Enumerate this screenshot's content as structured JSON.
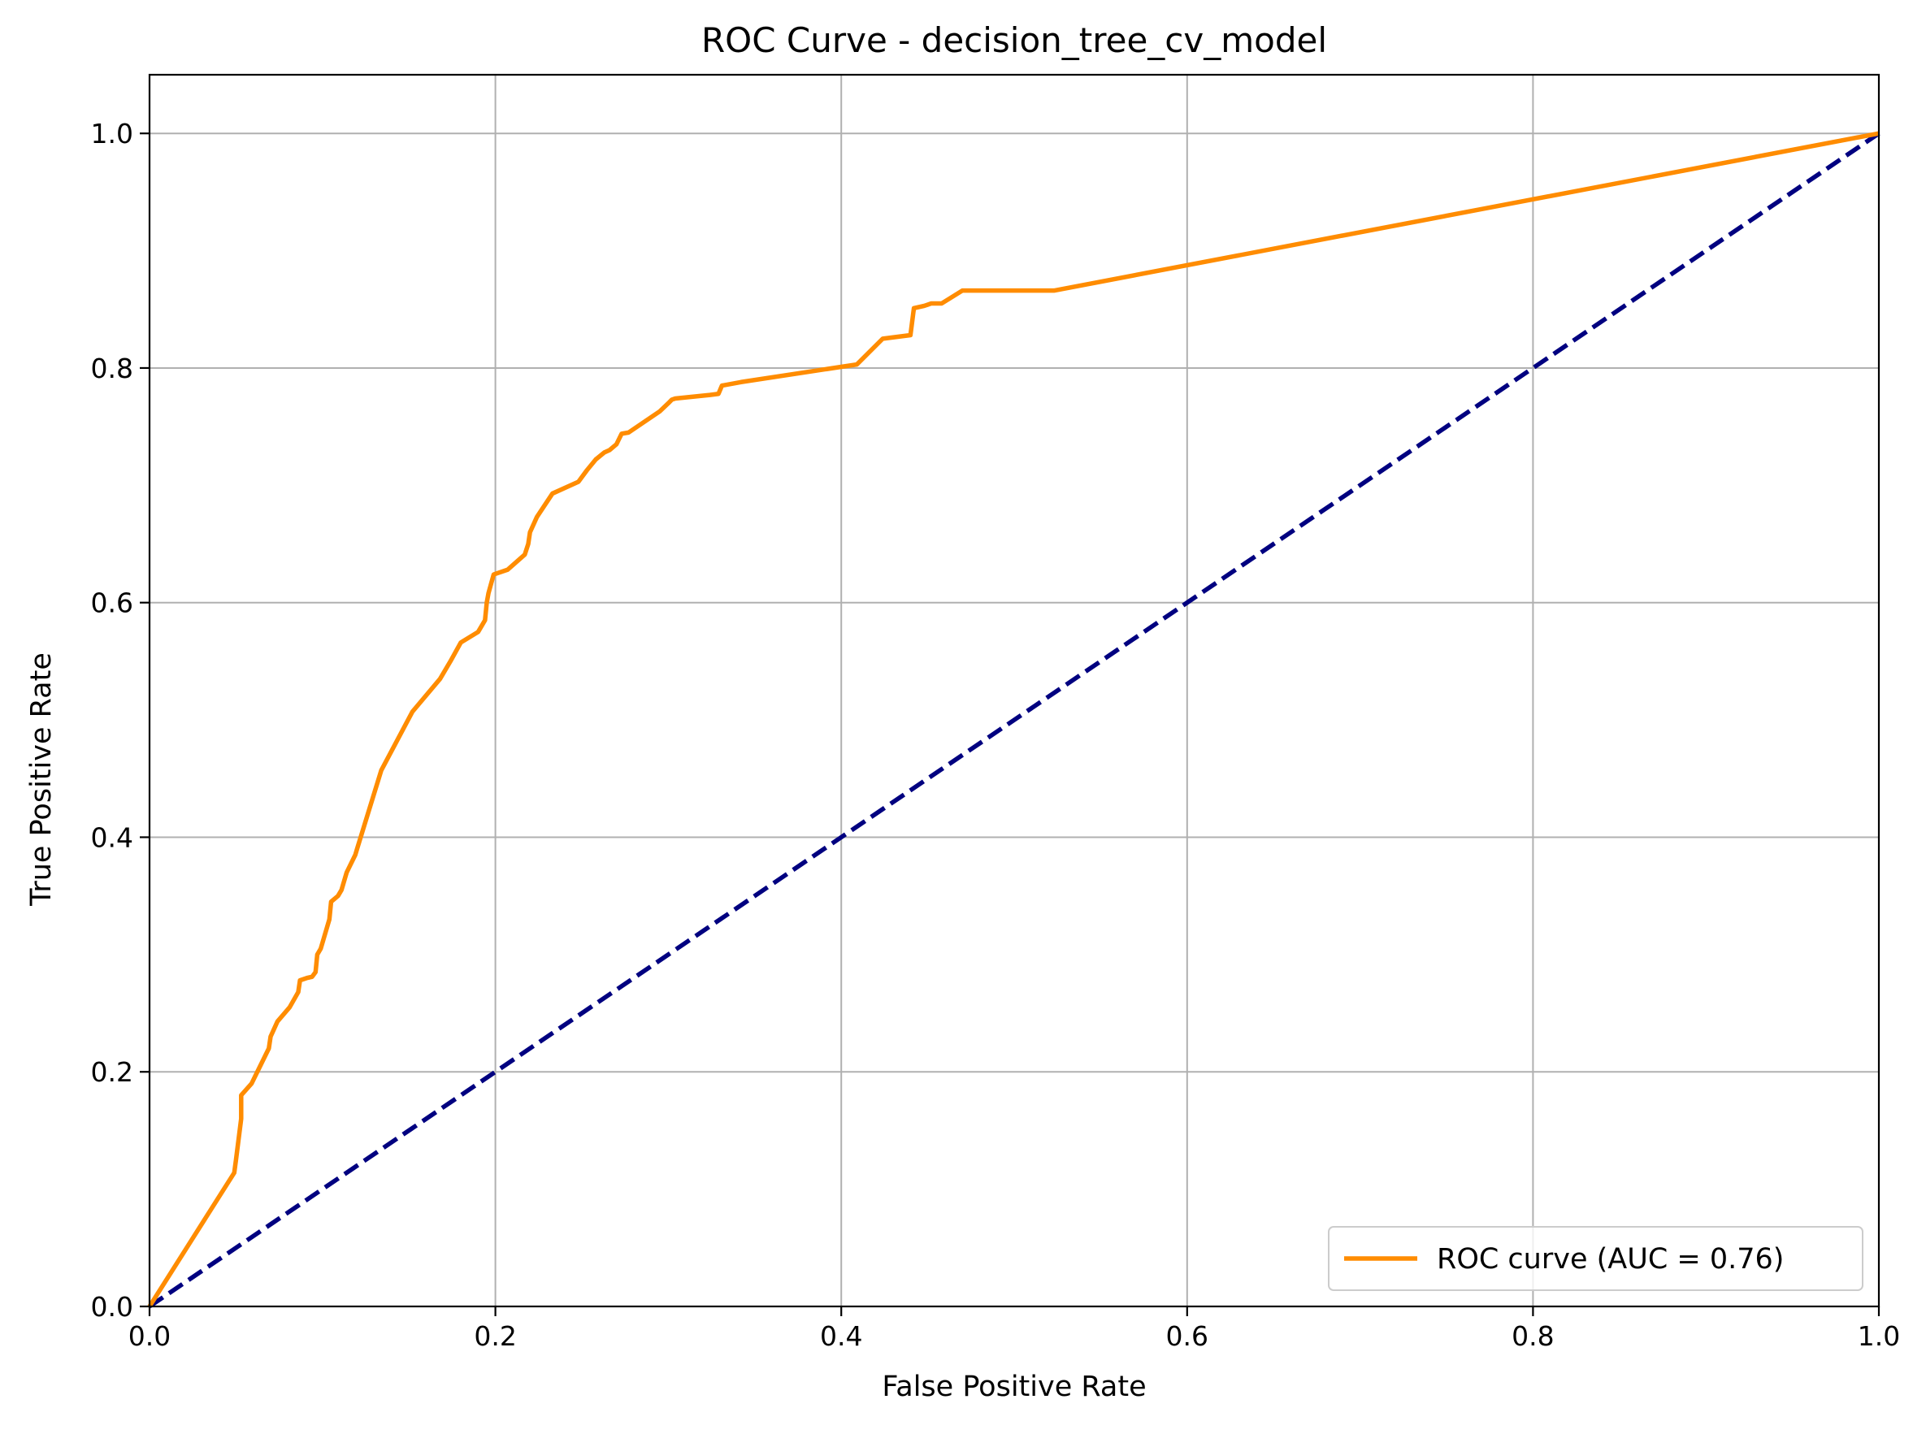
{
  "chart_data": {
    "type": "line",
    "title": "ROC Curve - decision_tree_cv_model",
    "xlabel": "False Positive Rate",
    "ylabel": "True Positive Rate",
    "xlim": [
      0.0,
      1.0
    ],
    "ylim": [
      0.0,
      1.05
    ],
    "xticks": [
      0.0,
      0.2,
      0.4,
      0.6,
      0.8,
      1.0
    ],
    "yticks": [
      0.0,
      0.2,
      0.4,
      0.6,
      0.8,
      1.0
    ],
    "xtick_labels": [
      "0.0",
      "0.2",
      "0.4",
      "0.6",
      "0.8",
      "1.0"
    ],
    "ytick_labels": [
      "0.0",
      "0.2",
      "0.4",
      "0.6",
      "0.8",
      "1.0"
    ],
    "grid": true,
    "legend_position": "lower-right",
    "series": [
      {
        "name": "ROC curve (AUC = 0.76)",
        "color": "#ff8c00",
        "style": "solid",
        "x": [
          0.0,
          0.049,
          0.05,
          0.053,
          0.053,
          0.059,
          0.064,
          0.069,
          0.07,
          0.074,
          0.081,
          0.086,
          0.087,
          0.091,
          0.094,
          0.096,
          0.097,
          0.099,
          0.104,
          0.105,
          0.109,
          0.111,
          0.114,
          0.119,
          0.12,
          0.134,
          0.152,
          0.168,
          0.174,
          0.18,
          0.19,
          0.194,
          0.195,
          0.196,
          0.199,
          0.207,
          0.217,
          0.219,
          0.22,
          0.224,
          0.233,
          0.248,
          0.253,
          0.258,
          0.263,
          0.266,
          0.27,
          0.273,
          0.277,
          0.295,
          0.3,
          0.302,
          0.304,
          0.324,
          0.329,
          0.331,
          0.342,
          0.4,
          0.409,
          0.424,
          0.44,
          0.442,
          0.448,
          0.452,
          0.458,
          0.47,
          0.523,
          1.0
        ],
        "y": [
          0.0,
          0.114,
          0.125,
          0.16,
          0.18,
          0.19,
          0.205,
          0.22,
          0.23,
          0.243,
          0.255,
          0.268,
          0.278,
          0.28,
          0.281,
          0.285,
          0.3,
          0.305,
          0.33,
          0.345,
          0.35,
          0.355,
          0.37,
          0.385,
          0.39,
          0.457,
          0.507,
          0.535,
          0.55,
          0.566,
          0.575,
          0.585,
          0.6,
          0.608,
          0.624,
          0.628,
          0.641,
          0.65,
          0.66,
          0.673,
          0.693,
          0.703,
          0.713,
          0.722,
          0.728,
          0.73,
          0.735,
          0.744,
          0.745,
          0.763,
          0.77,
          0.773,
          0.774,
          0.777,
          0.778,
          0.785,
          0.788,
          0.801,
          0.803,
          0.825,
          0.828,
          0.851,
          0.853,
          0.855,
          0.855,
          0.866,
          0.866,
          1.0
        ]
      },
      {
        "name": "",
        "color": "#000080",
        "style": "dashed",
        "x": [
          0.0,
          1.0
        ],
        "y": [
          0.0,
          1.0
        ]
      }
    ]
  }
}
